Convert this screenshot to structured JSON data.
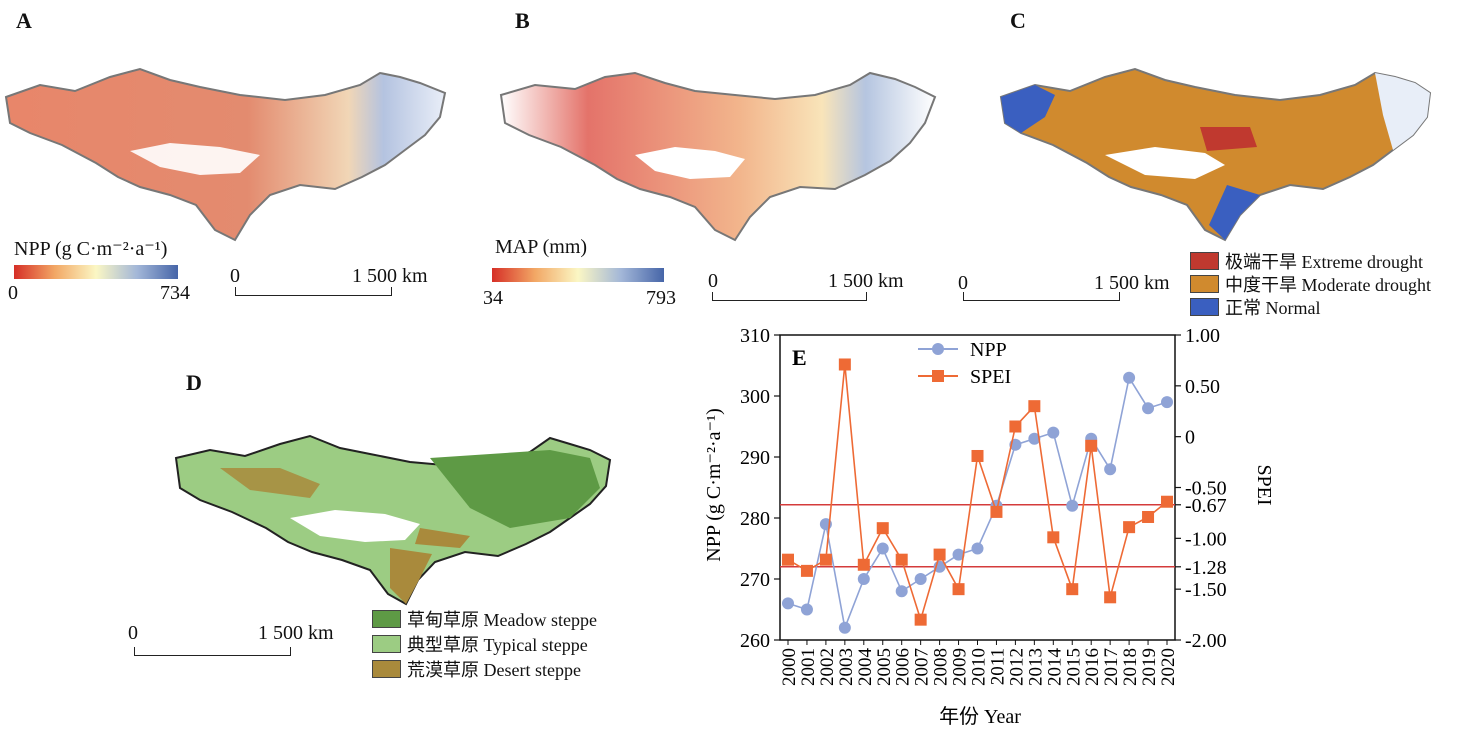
{
  "panels": {
    "A": {
      "letter": "A",
      "legend_title": "NPP (g C·m⁻²·a⁻¹)",
      "min": "0",
      "max": "734",
      "colors": [
        "#d62f27",
        "#f2a765",
        "#fbf7c4",
        "#a3b7d8",
        "#4665a8"
      ],
      "scale_start": "0",
      "scale_end": "1 500 km"
    },
    "B": {
      "letter": "B",
      "legend_title": "MAP (mm)",
      "min": "34",
      "max": "793",
      "colors": [
        "#d62f27",
        "#f2a765",
        "#fbf7c4",
        "#a3b7d8",
        "#4665a8"
      ],
      "scale_start": "0",
      "scale_end": "1 500 km"
    },
    "C": {
      "letter": "C",
      "scale_start": "0",
      "scale_end": "1 500 km",
      "legend": [
        {
          "label": "极端干旱 Extreme drought",
          "color": "#c0392f"
        },
        {
          "label": "中度干旱 Moderate drought",
          "color": "#d08a2e"
        },
        {
          "label": "正常 Normal",
          "color": "#3a5fc0"
        }
      ]
    },
    "D": {
      "letter": "D",
      "scale_start": "0",
      "scale_end": "1 500 km",
      "legend": [
        {
          "label": "草甸草原 Meadow steppe",
          "color": "#5e9a45"
        },
        {
          "label": "典型草原 Typical steppe",
          "color": "#9ccc83"
        },
        {
          "label": "荒漠草原 Desert steppe",
          "color": "#a98a3c"
        }
      ]
    }
  },
  "chart_data": {
    "type": "line",
    "panel_letter": "E",
    "x": [
      "2000",
      "2001",
      "2002",
      "2003",
      "2004",
      "2005",
      "2006",
      "2007",
      "2008",
      "2009",
      "2010",
      "2011",
      "2012",
      "2013",
      "2014",
      "2015",
      "2016",
      "2017",
      "2018",
      "2019",
      "2020"
    ],
    "xlabel": "年份 Year",
    "ylabel_left": "NPP (g C·m⁻²·a⁻¹)",
    "ylabel_right": "SPEI",
    "ylim_left": [
      260,
      310
    ],
    "ylim_right": [
      -2.0,
      1.0
    ],
    "yticks_left": [
      "260",
      "270",
      "280",
      "290",
      "300",
      "310"
    ],
    "yticks_right": [
      "1.00",
      "0.50",
      "0",
      "-0.50",
      "-0.67",
      "-1.00",
      "-1.28",
      "-1.50",
      "-2.00"
    ],
    "yticks_right_values": [
      1.0,
      0.5,
      0,
      -0.5,
      -0.67,
      -1.0,
      -1.28,
      -1.5,
      -2.0
    ],
    "threshold_lines": [
      -0.67,
      -1.28
    ],
    "threshold_color": "#d43b3b",
    "series": [
      {
        "name": "NPP",
        "axis": "left",
        "color": "#8fa3d6",
        "marker": "circle",
        "values": [
          266,
          265,
          279,
          262,
          270,
          275,
          268,
          270,
          272,
          274,
          275,
          282,
          292,
          293,
          294,
          282,
          293,
          288,
          303,
          298,
          299
        ]
      },
      {
        "name": "SPEI",
        "axis": "right",
        "color": "#ee6a35",
        "marker": "square",
        "values": [
          -1.21,
          -1.32,
          -1.21,
          0.71,
          -1.26,
          -0.9,
          -1.21,
          -1.8,
          -1.16,
          -1.5,
          -0.19,
          -0.74,
          0.1,
          0.3,
          -0.99,
          -1.5,
          -0.09,
          -1.58,
          -0.89,
          -0.79,
          -0.64
        ]
      }
    ]
  }
}
